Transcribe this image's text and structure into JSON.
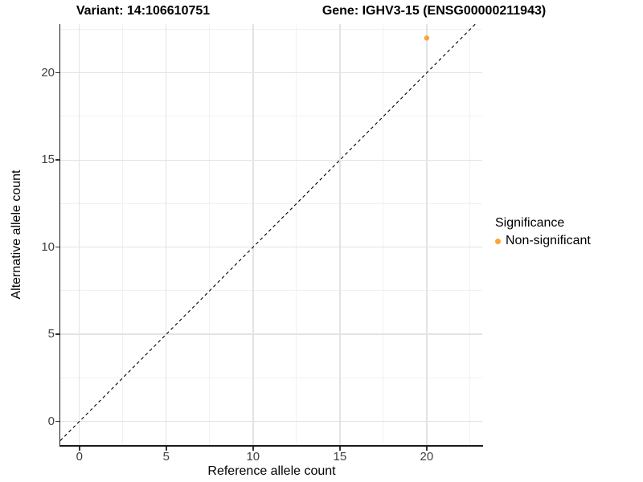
{
  "titles": {
    "variant": "Variant: 14:106610751",
    "gene": "Gene: IGHV3-15 (ENSG00000211943)"
  },
  "colors": {
    "point_orange": "#FAA43A",
    "grid_major": "#e3e3e3",
    "grid_minor": "#f1f1f1",
    "axis_line": "#1a1a1a",
    "reference_line": "#000000"
  },
  "chart_data": {
    "type": "scatter",
    "title": "Variant: 14:106610751 | Gene: IGHV3-15 (ENSG00000211943)",
    "xlabel": "Reference allele count",
    "ylabel": "Alternative allele count",
    "xlim": [
      -1.1,
      23.2
    ],
    "ylim": [
      -1.4,
      22.8
    ],
    "x_ticks": [
      0,
      5,
      10,
      15,
      20
    ],
    "y_ticks": [
      0,
      5,
      10,
      15,
      20
    ],
    "minor_ticks": [
      2.5,
      7.5,
      12.5,
      17.5,
      22.5
    ],
    "grid": true,
    "points": [
      {
        "x": 20,
        "y": 22,
        "series": "Non-significant",
        "color": "#FAA43A"
      }
    ],
    "reference_line": {
      "style": "dashed",
      "equation": "y = x",
      "color": "#000000"
    },
    "legend": {
      "title": "Significance",
      "position": "right",
      "entries": [
        {
          "label": "Non-significant",
          "color": "#FAA43A"
        }
      ]
    }
  }
}
